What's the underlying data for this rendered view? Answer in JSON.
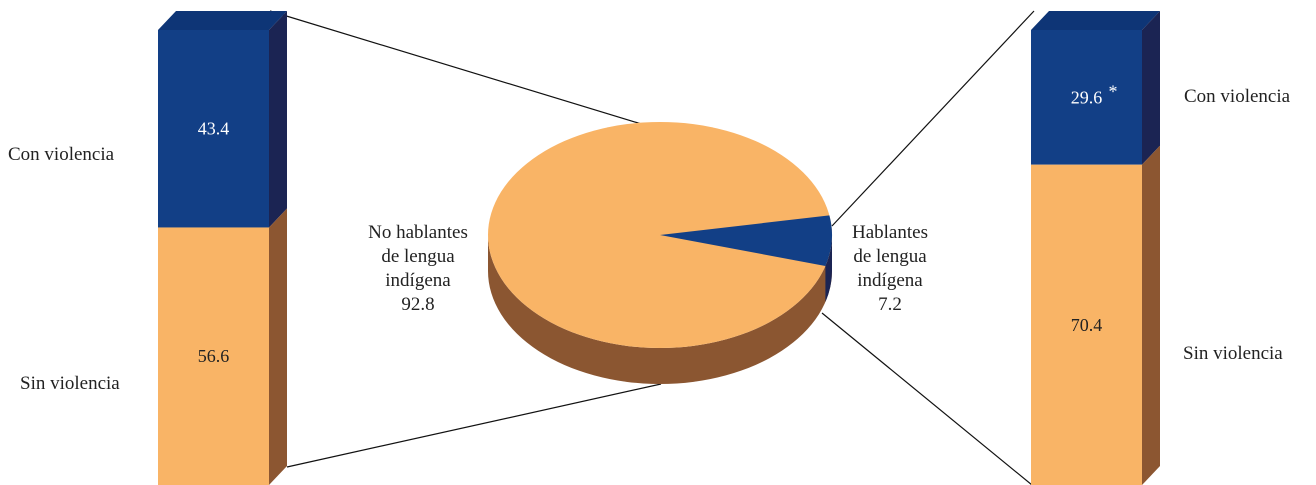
{
  "colors": {
    "violence": "#123f86",
    "violence_side": "#1b2453",
    "violence_top": "#0e3576",
    "no_violence": "#f9b466",
    "no_violence_side": "#8c5631",
    "pie_side": "#8b5631",
    "pie_side_dark": "#1b2453"
  },
  "chart_data": [
    {
      "type": "pie",
      "slices": [
        {
          "label_lines": [
            "No hablantes",
            "de lengua",
            "indígena"
          ],
          "value": 92.8,
          "value_label": "92.8",
          "color": "#f9b466"
        },
        {
          "label_lines": [
            "Hablantes",
            "de lengua",
            "indígena"
          ],
          "value": 7.2,
          "value_label": "7.2",
          "color": "#123f86"
        }
      ]
    },
    {
      "type": "bar",
      "stacked": true,
      "population": "No hablantes de lengua indígena",
      "segments": [
        {
          "category": "Con violencia",
          "value": 43.4,
          "value_label": "43.4",
          "color": "#123f86"
        },
        {
          "category": "Sin violencia",
          "value": 56.6,
          "value_label": "56.6",
          "color": "#f9b466"
        }
      ]
    },
    {
      "type": "bar",
      "stacked": true,
      "population": "Hablantes de lengua indígena",
      "segments": [
        {
          "category": "Con violencia",
          "value": 29.6,
          "value_label": "29.6",
          "marker": "*",
          "color": "#123f86"
        },
        {
          "category": "Sin violencia",
          "value": 70.4,
          "value_label": "70.4",
          "color": "#f9b466"
        }
      ]
    }
  ]
}
